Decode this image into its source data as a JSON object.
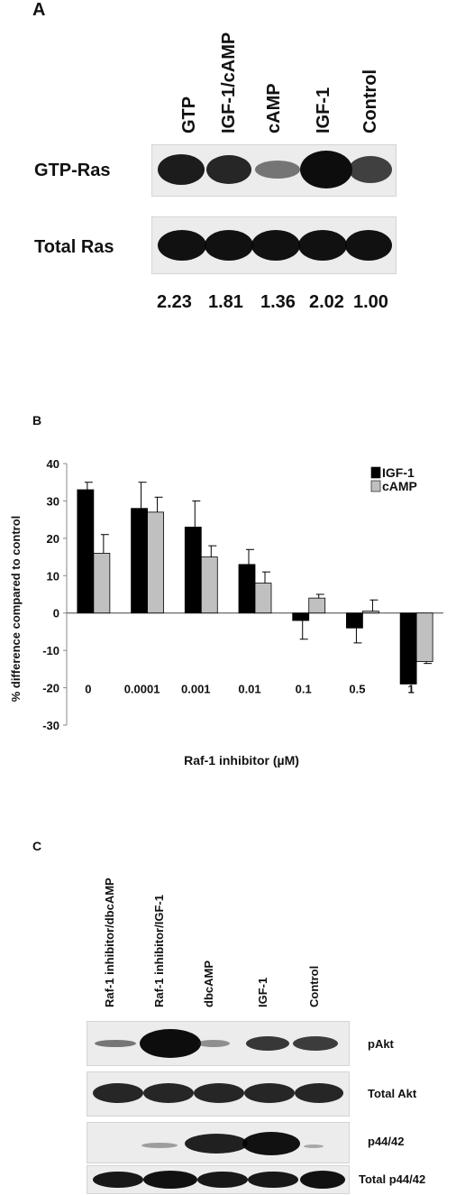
{
  "panelA": {
    "letter": "A",
    "lanes": [
      "GTP",
      "IGF-1/cAMP",
      "cAMP",
      "IGF-1",
      "Control"
    ],
    "rows": [
      "GTP-Ras",
      "Total Ras"
    ],
    "ratios": [
      "2.23",
      "1.81",
      "1.36",
      "2.02",
      "1.00"
    ],
    "gtp_ras_intensity": [
      0.9,
      0.85,
      0.45,
      1.0,
      0.7
    ]
  },
  "panelB": {
    "letter": "B",
    "chart_data": {
      "type": "bar",
      "categories": [
        "0",
        "0.0001",
        "0.001",
        "0.01",
        "0.1",
        "0.5",
        "1"
      ],
      "series": [
        {
          "name": "IGF-1",
          "values": [
            33,
            28,
            23,
            13,
            -2,
            -4,
            -19
          ],
          "errors": [
            2,
            7,
            7,
            4,
            5,
            4,
            0
          ],
          "color": "#000000"
        },
        {
          "name": "cAMP",
          "values": [
            16,
            27,
            15,
            8,
            4,
            0.5,
            -13
          ],
          "errors": [
            5,
            4,
            3,
            3,
            1,
            3,
            0.5
          ],
          "color": "#c0c0c0"
        }
      ],
      "ylabel": "% difference compared to control",
      "xlabel": "Raf-1 inhibitor (µM)",
      "ylim": [
        -30,
        40
      ],
      "yticks": [
        "40",
        "30",
        "20",
        "10",
        "0",
        "-10",
        "-20",
        "-30"
      ],
      "legend_placement": "top-right"
    }
  },
  "panelC": {
    "letter": "C",
    "lanes": [
      "Raf-1 inhibitor/dbcAMP",
      "Raf-1 inhibitor/IGF-1",
      "dbcAMP",
      "IGF-1",
      "Control"
    ],
    "rows": [
      "pAkt",
      "Total Akt",
      "p44/42",
      "Total p44/42"
    ]
  }
}
